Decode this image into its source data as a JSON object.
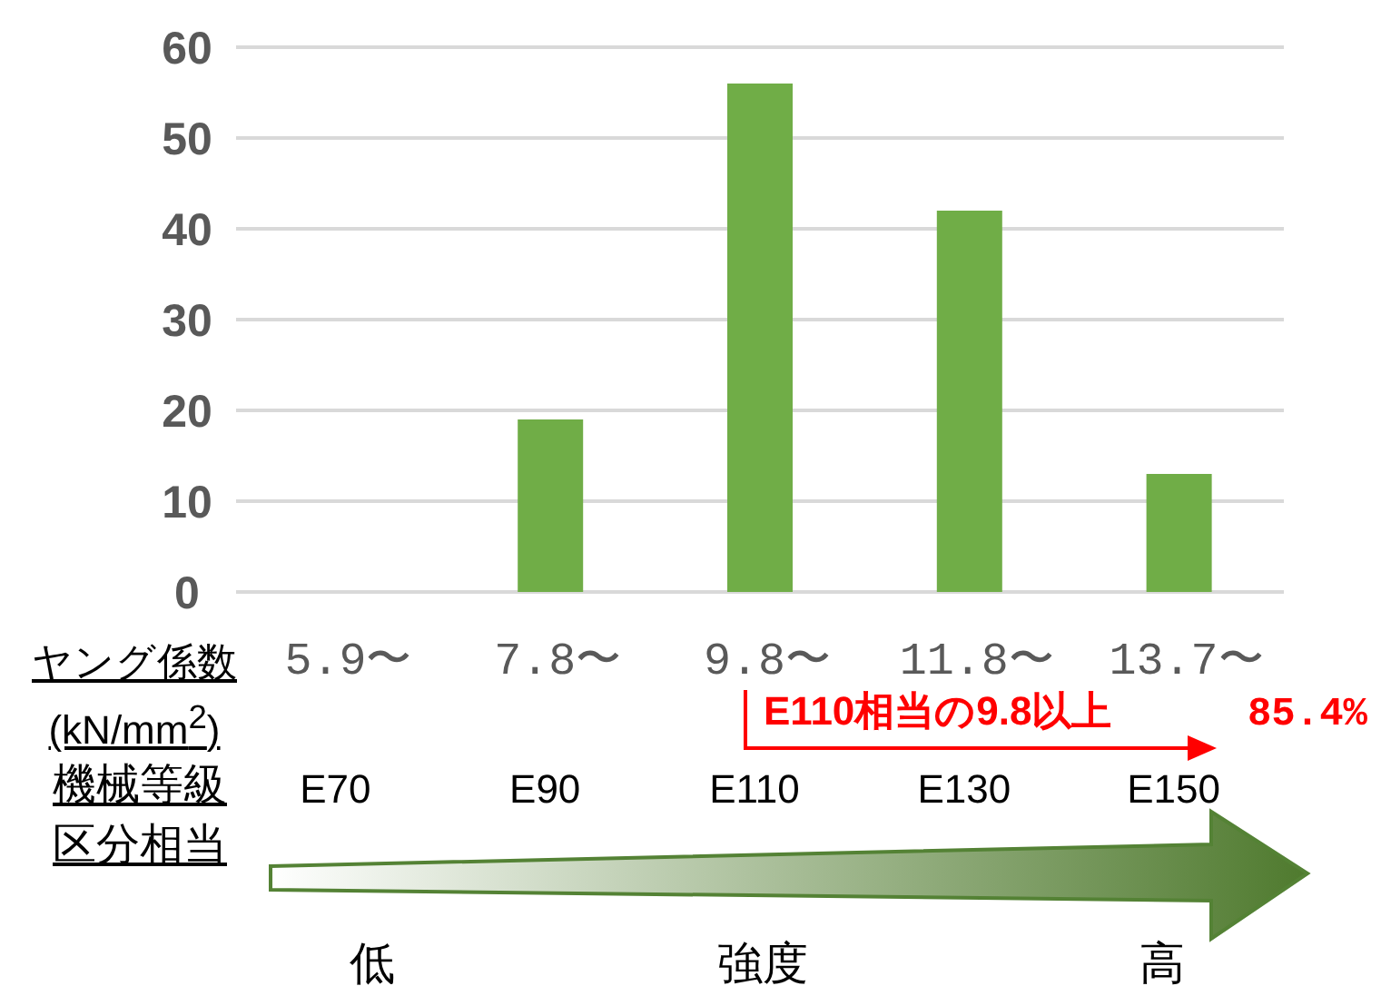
{
  "chart_data": {
    "type": "bar",
    "categories": [
      "5.9〜",
      "7.8〜",
      "9.8〜",
      "11.8〜",
      "13.7〜"
    ],
    "values": [
      0,
      19,
      56,
      42,
      13
    ],
    "color": "#70ad47",
    "ylim": [
      0,
      60
    ],
    "yticks": [
      0,
      10,
      20,
      30,
      40,
      50,
      60
    ],
    "grid": "y",
    "xlabel": "ヤング係数 (kN/mm$^{2}$)",
    "annotations": [
      "E70",
      "E90",
      "E110",
      "E130",
      "E150",
      "機械等級区分相当",
      "E110相当の9.8以上",
      "85.4%",
      "低",
      "強度",
      "高"
    ]
  }
}
